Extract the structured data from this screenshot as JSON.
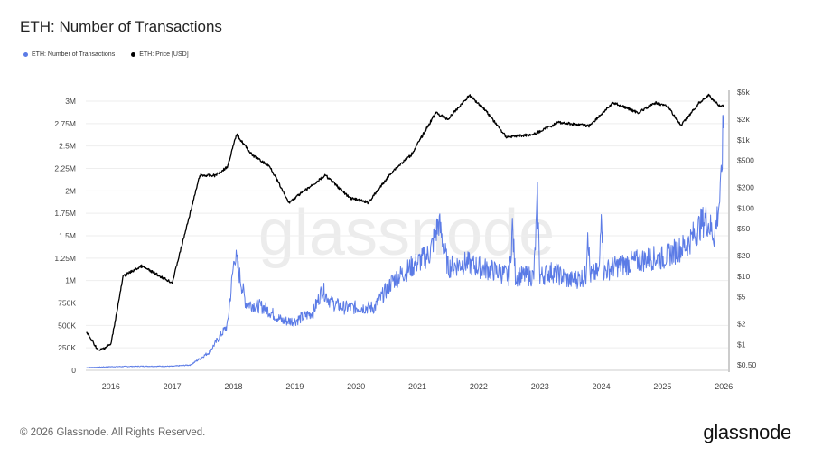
{
  "title": "ETH: Number of Transactions",
  "footer": {
    "copyright": "© 2026 Glassnode. All Rights Reserved.",
    "logo": "glassnode"
  },
  "watermark": "glassnode",
  "chart_data": {
    "type": "line",
    "title": "ETH: Number of Transactions",
    "legend_placement": "top-left",
    "grid": true,
    "x_ticks": [
      "2016",
      "2017",
      "2018",
      "2019",
      "2020",
      "2021",
      "2022",
      "2023",
      "2024",
      "2025",
      "2026"
    ],
    "xlim": [
      2015.59,
      2026.07
    ],
    "y_left": {
      "ticks": [
        "0",
        "250K",
        "500K",
        "750K",
        "1M",
        "1.25M",
        "1.5M",
        "1.75M",
        "2M",
        "2.25M",
        "2.5M",
        "2.75M",
        "3M"
      ],
      "ylim": [
        0,
        3000000
      ],
      "scale": "linear"
    },
    "y_right": {
      "ticks": [
        {
          "v": 0.5,
          "l": "$0.50"
        },
        {
          "v": 1,
          "l": "$1"
        },
        {
          "v": 2,
          "l": "$2"
        },
        {
          "v": 5,
          "l": "$5"
        },
        {
          "v": 10,
          "l": "$10"
        },
        {
          "v": 20,
          "l": "$20"
        },
        {
          "v": 50,
          "l": "$50"
        },
        {
          "v": 100,
          "l": "$100"
        },
        {
          "v": 200,
          "l": "$200"
        },
        {
          "v": 500,
          "l": "$500"
        },
        {
          "v": 1000,
          "l": "$1k"
        },
        {
          "v": 2000,
          "l": "$2k"
        },
        {
          "v": 5000,
          "l": "$5k"
        }
      ],
      "ylim": [
        0.5,
        5000
      ],
      "scale": "log"
    },
    "series": [
      {
        "name": "ETH: Number of Transactions",
        "color": "#5b7be6",
        "axis": "left",
        "x": [
          2015.6,
          2016.0,
          2016.5,
          2017.0,
          2017.3,
          2017.6,
          2017.9,
          2018.02,
          2018.2,
          2018.5,
          2018.8,
          2019.0,
          2019.3,
          2019.45,
          2019.6,
          2019.8,
          2020.0,
          2020.3,
          2020.6,
          2020.9,
          2021.2,
          2021.35,
          2021.5,
          2021.8,
          2022.0,
          2022.3,
          2022.5,
          2022.55,
          2022.6,
          2022.9,
          2022.96,
          2023.0,
          2023.2,
          2023.5,
          2023.75,
          2023.78,
          2023.82,
          2023.97,
          2024.0,
          2024.04,
          2024.2,
          2024.5,
          2024.8,
          2025.0,
          2025.4,
          2025.7,
          2025.85,
          2025.95,
          2026.0
        ],
        "y": [
          30000,
          40000,
          45000,
          45000,
          60000,
          200000,
          500000,
          1300000,
          750000,
          700000,
          550000,
          550000,
          650000,
          900000,
          750000,
          700000,
          700000,
          700000,
          1000000,
          1150000,
          1300000,
          1650000,
          1150000,
          1200000,
          1150000,
          1100000,
          1050000,
          1600000,
          1050000,
          1050000,
          1900000,
          1050000,
          1100000,
          1000000,
          1050000,
          1600000,
          1050000,
          1100000,
          1900000,
          1100000,
          1150000,
          1200000,
          1250000,
          1250000,
          1400000,
          1700000,
          1500000,
          2000000,
          2850000
        ]
      },
      {
        "name": "ETH: Price [USD]",
        "color": "#000000",
        "axis": "right",
        "x": [
          2015.6,
          2015.8,
          2016.0,
          2016.2,
          2016.5,
          2016.8,
          2017.0,
          2017.2,
          2017.45,
          2017.7,
          2017.9,
          2018.05,
          2018.3,
          2018.6,
          2018.9,
          2019.0,
          2019.5,
          2019.9,
          2020.2,
          2020.6,
          2020.9,
          2021.3,
          2021.5,
          2021.85,
          2022.1,
          2022.45,
          2022.9,
          2023.3,
          2023.8,
          2024.2,
          2024.6,
          2024.9,
          2025.1,
          2025.3,
          2025.6,
          2025.75,
          2025.95,
          2026.0
        ],
        "y": [
          1.5,
          0.8,
          1,
          10,
          14,
          10,
          8,
          40,
          300,
          300,
          400,
          1200,
          600,
          400,
          120,
          140,
          300,
          140,
          120,
          350,
          600,
          2500,
          2000,
          4500,
          2800,
          1100,
          1200,
          1800,
          1600,
          3500,
          2500,
          3500,
          3000,
          1600,
          3500,
          4500,
          3000,
          3200
        ]
      }
    ]
  }
}
